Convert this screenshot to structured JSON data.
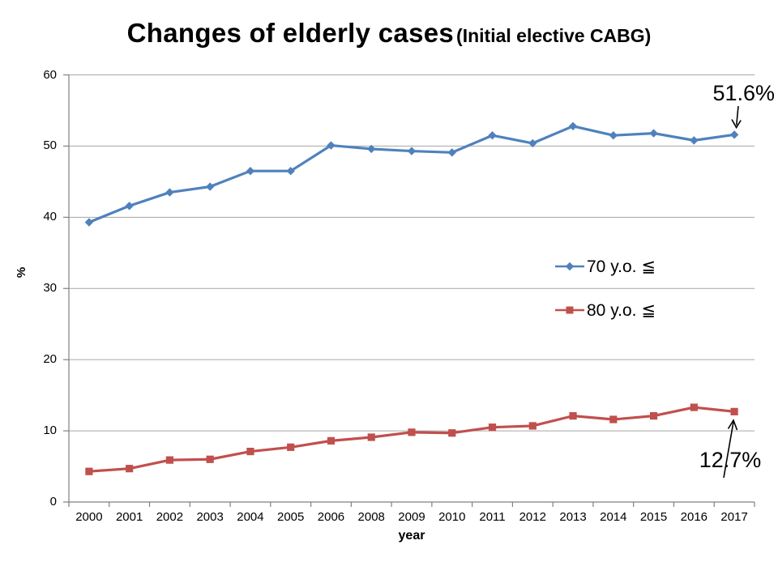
{
  "title": {
    "main": "Changes of elderly cases",
    "sub": "(Initial elective CABG)"
  },
  "chart_data": {
    "type": "line",
    "title": "Changes of elderly cases (Initial elective CABG)",
    "categories": [
      "2000",
      "2001",
      "2002",
      "2003",
      "2004",
      "2005",
      "2006",
      "2008",
      "2009",
      "2010",
      "2011",
      "2012",
      "2013",
      "2014",
      "2015",
      "2016",
      "2017"
    ],
    "series": [
      {
        "name": "70 y.o. ≦",
        "color": "#4F81BD",
        "marker": "diamond",
        "values": [
          39.3,
          41.6,
          43.5,
          44.3,
          46.5,
          46.5,
          50.1,
          49.6,
          49.3,
          49.1,
          51.5,
          50.4,
          52.8,
          51.5,
          51.8,
          50.8,
          51.6
        ]
      },
      {
        "name": "80 y.o. ≦",
        "color": "#C0504D",
        "marker": "square",
        "values": [
          4.3,
          4.7,
          5.9,
          6.0,
          7.1,
          7.7,
          8.6,
          9.1,
          9.8,
          9.7,
          10.5,
          10.7,
          12.1,
          11.6,
          12.1,
          13.3,
          12.7
        ]
      }
    ],
    "xlabel": "year",
    "ylabel": "%",
    "ylim": [
      0,
      60
    ],
    "ytick_step": 10,
    "grid": true,
    "legend_position": "center-right",
    "annotations": [
      {
        "text": "51.6%",
        "series": "70 y.o. ≦",
        "category": "2017"
      },
      {
        "text": "12.7%",
        "series": "80 y.o. ≦",
        "category": "2017"
      }
    ],
    "colors": {
      "gridline": "#A6A6A6",
      "axis": "#808080",
      "text": "#000000"
    }
  }
}
